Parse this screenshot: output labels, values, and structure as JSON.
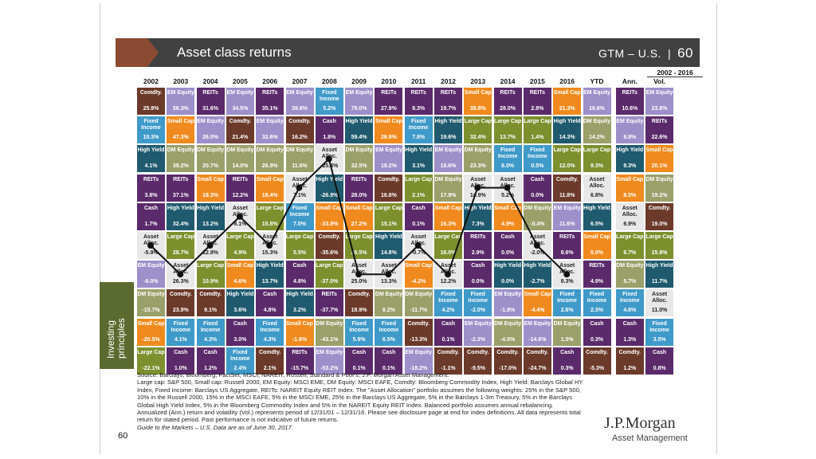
{
  "header": {
    "title": "Asset class returns",
    "code": "GTM – U.S.",
    "page": "60"
  },
  "columns": [
    "2002",
    "2003",
    "2004",
    "2005",
    "2006",
    "2007",
    "2008",
    "2009",
    "2010",
    "2011",
    "2012",
    "2013",
    "2014",
    "2015",
    "2016",
    "YTD",
    "Ann.",
    "Vol."
  ],
  "range_label": "2002 - 2016",
  "colors": {
    "REITs": "#5b2a6b",
    "EM Equity": "#9d8fc9",
    "Fixed Income": "#3f9ac9",
    "Small Cap": "#f08a1e",
    "Comdty.": "#6b3a2a",
    "Cash": "#5b2a6b",
    "High Yield": "#1f5a6e",
    "DM Equity": "#9aa06a",
    "Large Cap": "#7e8f2e",
    "Asset Alloc.": "#e8e8e8"
  },
  "grid": [
    [
      [
        "Comdty.",
        "25.9%"
      ],
      [
        "EM Equity",
        "56.3%"
      ],
      [
        "REITs",
        "31.6%"
      ],
      [
        "EM Equity",
        "34.5%"
      ],
      [
        "REITs",
        "35.1%"
      ],
      [
        "EM Equity",
        "39.8%"
      ],
      [
        "Fixed Income",
        "5.2%"
      ],
      [
        "EM Equity",
        "79.0%"
      ],
      [
        "REITs",
        "27.9%"
      ],
      [
        "REITs",
        "8.3%"
      ],
      [
        "REITs",
        "19.7%"
      ],
      [
        "Small Cap",
        "38.8%"
      ],
      [
        "REITs",
        "28.0%"
      ],
      [
        "REITs",
        "2.8%"
      ],
      [
        "Small Cap",
        "21.3%"
      ],
      [
        "EM Equity",
        "16.6%"
      ],
      [
        "REITs",
        "10.6%"
      ],
      [
        "EM Equity",
        "23.8%"
      ]
    ],
    [
      [
        "Fixed Income",
        "10.3%"
      ],
      [
        "Small Cap",
        "47.3%"
      ],
      [
        "EM Equity",
        "26.0%"
      ],
      [
        "Comdty.",
        "21.4%"
      ],
      [
        "EM Equity",
        "32.6%"
      ],
      [
        "Comdty.",
        "16.2%"
      ],
      [
        "Cash",
        "1.8%"
      ],
      [
        "High Yield",
        "59.4%"
      ],
      [
        "Small Cap",
        "26.9%"
      ],
      [
        "Fixed Income",
        "7.8%"
      ],
      [
        "High Yield",
        "19.6%"
      ],
      [
        "Large Cap",
        "32.4%"
      ],
      [
        "Large Cap",
        "13.7%"
      ],
      [
        "Large Cap",
        "1.4%"
      ],
      [
        "High Yield",
        "14.3%"
      ],
      [
        "DM Equity",
        "14.2%"
      ],
      [
        "EM Equity",
        "9.8%"
      ],
      [
        "REITs",
        "22.6%"
      ]
    ],
    [
      [
        "High Yield",
        "4.1%"
      ],
      [
        "DM Equity",
        "39.2%"
      ],
      [
        "DM Equity",
        "20.7%"
      ],
      [
        "DM Equity",
        "14.0%"
      ],
      [
        "DM Equity",
        "26.9%"
      ],
      [
        "DM Equity",
        "11.6%"
      ],
      [
        "Asset Alloc.",
        "-25.4%"
      ],
      [
        "DM Equity",
        "32.5%"
      ],
      [
        "EM Equity",
        "19.2%"
      ],
      [
        "High Yield",
        "3.1%"
      ],
      [
        "EM Equity",
        "18.6%"
      ],
      [
        "DM Equity",
        "23.3%"
      ],
      [
        "Fixed Income",
        "6.0%"
      ],
      [
        "Fixed Income",
        "0.5%"
      ],
      [
        "Large Cap",
        "12.0%"
      ],
      [
        "Large Cap",
        "9.3%"
      ],
      [
        "High Yield",
        "8.3%"
      ],
      [
        "Small Cap",
        "20.1%"
      ]
    ],
    [
      [
        "REITs",
        "3.8%"
      ],
      [
        "REITs",
        "37.1%"
      ],
      [
        "Small Cap",
        "18.3%"
      ],
      [
        "REITs",
        "12.2%"
      ],
      [
        "Small Cap",
        "18.4%"
      ],
      [
        "Asset Alloc.",
        "7.1%"
      ],
      [
        "High Yield",
        "-26.9%"
      ],
      [
        "REITs",
        "28.0%"
      ],
      [
        "Comdty.",
        "16.8%"
      ],
      [
        "Large Cap",
        "2.1%"
      ],
      [
        "DM Equity",
        "17.9%"
      ],
      [
        "Asset Alloc.",
        "14.9%"
      ],
      [
        "Asset Alloc.",
        "5.2%"
      ],
      [
        "Cash",
        "0.0%"
      ],
      [
        "Comdty.",
        "11.8%"
      ],
      [
        "Asset Alloc.",
        "6.8%"
      ],
      [
        "Small Cap",
        "8.5%"
      ],
      [
        "DM Equity",
        "19.2%"
      ]
    ],
    [
      [
        "Cash",
        "1.7%"
      ],
      [
        "High Yield",
        "32.4%"
      ],
      [
        "High Yield",
        "13.2%"
      ],
      [
        "Asset Alloc.",
        "8.1%"
      ],
      [
        "Large Cap",
        "15.8%"
      ],
      [
        "Fixed Income",
        "7.0%"
      ],
      [
        "Small Cap",
        "-33.8%"
      ],
      [
        "Small Cap",
        "27.2%"
      ],
      [
        "Large Cap",
        "15.1%"
      ],
      [
        "Cash",
        "0.1%"
      ],
      [
        "Small Cap",
        "16.3%"
      ],
      [
        "High Yield",
        "7.3%"
      ],
      [
        "Small Cap",
        "4.9%"
      ],
      [
        "DM Equity",
        "-0.4%"
      ],
      [
        "EM Equity",
        "11.6%"
      ],
      [
        "High Yield",
        "6.5%"
      ],
      [
        "Asset Alloc.",
        "6.9%"
      ],
      [
        "Comdty.",
        "19.0%"
      ]
    ],
    [
      [
        "Asset Alloc.",
        "-5.9%"
      ],
      [
        "Large Cap",
        "28.7%"
      ],
      [
        "Asset Alloc.",
        "12.8%"
      ],
      [
        "Large Cap",
        "4.9%"
      ],
      [
        "Asset Alloc.",
        "15.3%"
      ],
      [
        "Large Cap",
        "5.5%"
      ],
      [
        "Comdty.",
        "-35.6%"
      ],
      [
        "Large Cap",
        "26.5%"
      ],
      [
        "High Yield",
        "14.8%"
      ],
      [
        "Asset Alloc.",
        "-0.7%"
      ],
      [
        "Large Cap",
        "16.0%"
      ],
      [
        "REITs",
        "2.9%"
      ],
      [
        "Cash",
        "0.0%"
      ],
      [
        "Asset Alloc.",
        "-2.0%"
      ],
      [
        "REITs",
        "8.6%"
      ],
      [
        "Small Cap",
        "5.0%"
      ],
      [
        "Large Cap",
        "6.7%"
      ],
      [
        "Large Cap",
        "15.9%"
      ]
    ],
    [
      [
        "EM Equity",
        "-6.0%"
      ],
      [
        "Asset Alloc.",
        "26.3%"
      ],
      [
        "Large Cap",
        "10.9%"
      ],
      [
        "Small Cap",
        "4.6%"
      ],
      [
        "High Yield",
        "13.7%"
      ],
      [
        "Cash",
        "4.8%"
      ],
      [
        "Large Cap",
        "-37.0%"
      ],
      [
        "Asset Alloc.",
        "25.0%"
      ],
      [
        "Asset Alloc.",
        "13.3%"
      ],
      [
        "Small Cap",
        "-4.2%"
      ],
      [
        "Asset Alloc.",
        "12.2%"
      ],
      [
        "Cash",
        "0.0%"
      ],
      [
        "High Yield",
        "0.0%"
      ],
      [
        "High Yield",
        "-2.7%"
      ],
      [
        "Asset Alloc.",
        "8.3%"
      ],
      [
        "REITs",
        "4.9%"
      ],
      [
        "DM Equity",
        "5.7%"
      ],
      [
        "High Yield",
        "11.7%"
      ]
    ],
    [
      [
        "DM Equity",
        "-15.7%"
      ],
      [
        "Comdty.",
        "23.9%"
      ],
      [
        "Comdty.",
        "9.1%"
      ],
      [
        "High Yield",
        "3.6%"
      ],
      [
        "Cash",
        "4.8%"
      ],
      [
        "High Yield",
        "3.2%"
      ],
      [
        "REITs",
        "-37.7%"
      ],
      [
        "Comdty.",
        "18.9%"
      ],
      [
        "DM Equity",
        "8.2%"
      ],
      [
        "DM Equity",
        "-11.7%"
      ],
      [
        "Fixed Income",
        "4.2%"
      ],
      [
        "Fixed Income",
        "-2.0%"
      ],
      [
        "EM Equity",
        "-1.8%"
      ],
      [
        "Small Cap",
        "-4.4%"
      ],
      [
        "Fixed Income",
        "2.6%"
      ],
      [
        "Fixed Income",
        "2.3%"
      ],
      [
        "Fixed Income",
        "4.6%"
      ],
      [
        "Asset Alloc.",
        "11.0%"
      ]
    ],
    [
      [
        "Small Cap",
        "-20.5%"
      ],
      [
        "Fixed Income",
        "4.1%"
      ],
      [
        "Fixed Income",
        "4.3%"
      ],
      [
        "Cash",
        "3.0%"
      ],
      [
        "Fixed Income",
        "4.3%"
      ],
      [
        "Small Cap",
        "-1.6%"
      ],
      [
        "DM Equity",
        "-43.1%"
      ],
      [
        "Fixed Income",
        "5.9%"
      ],
      [
        "Fixed Income",
        "6.5%"
      ],
      [
        "Comdty.",
        "-13.3%"
      ],
      [
        "Cash",
        "0.1%"
      ],
      [
        "EM Equity",
        "-2.3%"
      ],
      [
        "DM Equity",
        "-4.5%"
      ],
      [
        "EM Equity",
        "-14.6%"
      ],
      [
        "DM Equity",
        "1.5%"
      ],
      [
        "Cash",
        "0.3%"
      ],
      [
        "Cash",
        "1.3%"
      ],
      [
        "Fixed Income",
        "3.5%"
      ]
    ],
    [
      [
        "Large Cap",
        "-22.1%"
      ],
      [
        "Cash",
        "1.0%"
      ],
      [
        "Cash",
        "1.2%"
      ],
      [
        "Fixed Income",
        "2.4%"
      ],
      [
        "Comdty.",
        "2.1%"
      ],
      [
        "REITs",
        "-15.7%"
      ],
      [
        "EM Equity",
        "-53.2%"
      ],
      [
        "Cash",
        "0.1%"
      ],
      [
        "Cash",
        "0.1%"
      ],
      [
        "EM Equity",
        "-18.2%"
      ],
      [
        "Comdty.",
        "-1.1%"
      ],
      [
        "Comdty.",
        "-9.5%"
      ],
      [
        "Comdty.",
        "-17.0%"
      ],
      [
        "Comdty.",
        "-24.7%"
      ],
      [
        "Cash",
        "0.3%"
      ],
      [
        "Comdty.",
        "-5.3%"
      ],
      [
        "Comdty.",
        "1.2%"
      ],
      [
        "Cash",
        "0.8%"
      ]
    ]
  ],
  "side_panel": "Investing principles",
  "footer": {
    "source": "Source: Barclays, Bloomberg, FactSet, MSCI, NAREIT, Russell, Standard & Poor's, J.P. Morgan Asset Management.",
    "body": "Large cap: S&P 500, Small cap: Russell 2000, EM Equity: MSCI EME, DM Equity: MSCI EAFE, Comdty: Bloomberg Commodity Index, High Yield: Barclays Global HY Index, Fixed Income: Barclays US Aggregate, REITs: NAREIT Equity REIT Index. The \"Asset Allocation\" portfolio assumes the following weights: 25% in the S&P 500, 10% in the Russell 2000, 15% in the MSCI EAFE, 5% in the MSCI EME, 25% in the Barclays US Aggregate, 5% in the Barclays 1-3m Treasury, 5% in the Barclays Global High Yield Index, 5% in the Bloomberg Commodity Index and 5% in the NAREIT Equity REIT Index. Balanced portfolio assumes annual rebalancing. Annualized (Ann.) return and volatility (Vol.) represents period of 12/31/01 – 12/31/16. Please see disclosure page at end for index definitions. All data represents total return for stated period. Past performance is not indicative of future returns.",
    "note": "Guide to the Markets – U.S. Data are as of June 30, 2017."
  },
  "page_number": "60",
  "logo": {
    "name": "J.P.Morgan",
    "sub": "Asset Management"
  }
}
